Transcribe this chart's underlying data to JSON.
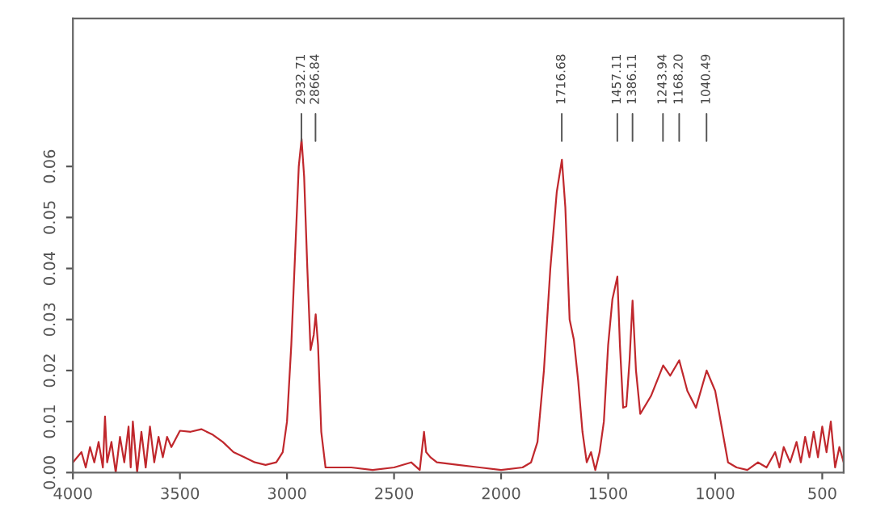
{
  "chart_data": {
    "type": "line",
    "x": [
      4000,
      3960,
      3940,
      3920,
      3900,
      3880,
      3860,
      3850,
      3840,
      3820,
      3800,
      3780,
      3760,
      3740,
      3730,
      3720,
      3700,
      3680,
      3660,
      3640,
      3620,
      3600,
      3580,
      3560,
      3540,
      3500,
      3450,
      3400,
      3350,
      3300,
      3250,
      3200,
      3150,
      3100,
      3050,
      3020,
      3000,
      2980,
      2960,
      2945,
      2932,
      2920,
      2905,
      2890,
      2875,
      2866,
      2855,
      2840,
      2820,
      2700,
      2600,
      2500,
      2420,
      2380,
      2360,
      2350,
      2330,
      2300,
      2200,
      2100,
      2000,
      1900,
      1860,
      1830,
      1800,
      1770,
      1740,
      1716,
      1700,
      1680,
      1660,
      1640,
      1620,
      1600,
      1580,
      1560,
      1540,
      1520,
      1500,
      1480,
      1457,
      1445,
      1430,
      1415,
      1400,
      1386,
      1370,
      1350,
      1300,
      1243,
      1210,
      1168,
      1130,
      1090,
      1040,
      1000,
      970,
      940,
      900,
      850,
      800,
      760,
      720,
      700,
      680,
      650,
      620,
      600,
      580,
      560,
      540,
      520,
      500,
      480,
      460,
      440,
      420,
      400
    ],
    "series": [
      {
        "color": "#c0282d",
        "values": [
          0.002,
          0.004,
          0.001,
          0.005,
          0.002,
          0.006,
          0.001,
          0.011,
          0.002,
          0.006,
          0.0,
          0.007,
          0.002,
          0.009,
          0.001,
          0.01,
          0.0,
          0.008,
          0.001,
          0.009,
          0.002,
          0.007,
          0.003,
          0.007,
          0.005,
          0.0082,
          0.008,
          0.0085,
          0.0075,
          0.006,
          0.004,
          0.003,
          0.002,
          0.0015,
          0.002,
          0.004,
          0.01,
          0.025,
          0.045,
          0.06,
          0.0654,
          0.058,
          0.04,
          0.024,
          0.027,
          0.031,
          0.025,
          0.008,
          0.001,
          0.001,
          0.0005,
          0.001,
          0.002,
          0.0005,
          0.008,
          0.004,
          0.003,
          0.002,
          0.0015,
          0.001,
          0.0005,
          0.001,
          0.002,
          0.006,
          0.02,
          0.04,
          0.055,
          0.0613,
          0.052,
          0.03,
          0.026,
          0.018,
          0.008,
          0.002,
          0.004,
          0.0005,
          0.004,
          0.01,
          0.025,
          0.034,
          0.0384,
          0.025,
          0.0127,
          0.013,
          0.022,
          0.0337,
          0.02,
          0.0115,
          0.015,
          0.021,
          0.019,
          0.022,
          0.016,
          0.0127,
          0.02,
          0.016,
          0.009,
          0.002,
          0.001,
          0.0005,
          0.002,
          0.001,
          0.004,
          0.001,
          0.005,
          0.002,
          0.006,
          0.002,
          0.007,
          0.003,
          0.008,
          0.003,
          0.009,
          0.004,
          0.01,
          0.001,
          0.005,
          0.002
        ]
      }
    ],
    "xlim": [
      4000,
      400
    ],
    "xticks": [
      4000,
      3500,
      3000,
      2500,
      2000,
      1500,
      1000,
      500
    ],
    "ylim": [
      0,
      0.089
    ],
    "yticks": [
      {
        "value": 0,
        "label": "0.00"
      },
      {
        "value": 0.01,
        "label": "0.01"
      },
      {
        "value": 0.02,
        "label": "0.02"
      },
      {
        "value": 0.03,
        "label": "0.03"
      },
      {
        "value": 0.04,
        "label": "0.04"
      },
      {
        "value": 0.05,
        "label": "0.05"
      },
      {
        "value": 0.06,
        "label": "0.06"
      }
    ],
    "grid": false,
    "marker": "none",
    "line_style": "solid",
    "annotations": [
      {
        "text": "2932.71",
        "x": 2932.71
      },
      {
        "text": "2866.84",
        "x": 2866.84
      },
      {
        "text": "1716.68",
        "x": 1716.68
      },
      {
        "text": "1457.11",
        "x": 1457.11
      },
      {
        "text": "1386.11",
        "x": 1386.11
      },
      {
        "text": "1243.94",
        "x": 1243.94
      },
      {
        "text": "1168.20",
        "x": 1168.2
      },
      {
        "text": "1040.49",
        "x": 1040.49
      }
    ]
  }
}
